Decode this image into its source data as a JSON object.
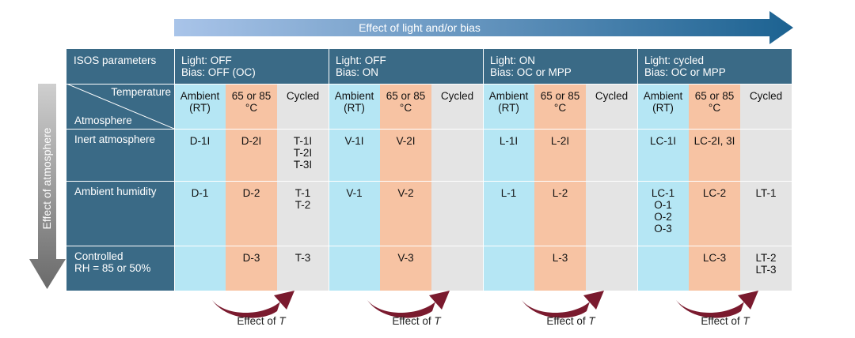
{
  "top_arrow": {
    "label": "Effect of light and/or bias",
    "color_start": "#a9c4e9",
    "color_end": "#1c6291"
  },
  "left_arrow": {
    "label": "Effect of atmosphere",
    "color_start": "#cfcfcf",
    "color_end": "#6a6a6a"
  },
  "colors": {
    "header": "#3a6a86",
    "ambient": "#b5e6f4",
    "heated": "#f7c3a3",
    "cycled": "#e4e4e4",
    "curve": "#7a1a2e"
  },
  "table": {
    "corner_label": "ISOS parameters",
    "diag_top": "Temperature",
    "diag_bottom": "Atmosphere",
    "groups": [
      {
        "light": "Light: OFF",
        "bias": "Bias: OFF (OC)"
      },
      {
        "light": "Light: OFF",
        "bias": "Bias: ON"
      },
      {
        "light": "Light: ON",
        "bias": "Bias: OC or MPP"
      },
      {
        "light": "Light: cycled",
        "bias": "Bias: OC or MPP"
      }
    ],
    "subheaders": [
      {
        "line1": "Ambient",
        "line2": "(RT)"
      },
      {
        "line1": "65 or 85",
        "line2": "°C"
      },
      {
        "line1": "Cycled",
        "line2": ""
      }
    ],
    "rows": [
      {
        "label_line1": "Inert atmosphere",
        "label_line2": "",
        "cells": [
          [
            "D-1I"
          ],
          [
            "D-2I"
          ],
          [
            "T-1I",
            "T-2I",
            "T-3I"
          ],
          [
            "V-1I"
          ],
          [
            "V-2I"
          ],
          [],
          [
            "L-1I"
          ],
          [
            "L-2I"
          ],
          [],
          [
            "LC-1I"
          ],
          [
            "LC-2I, 3I"
          ],
          []
        ]
      },
      {
        "label_line1": "Ambient humidity",
        "label_line2": "",
        "cells": [
          [
            "D-1"
          ],
          [
            "D-2"
          ],
          [
            "T-1",
            "T-2"
          ],
          [
            "V-1"
          ],
          [
            "V-2"
          ],
          [],
          [
            "L-1"
          ],
          [
            "L-2"
          ],
          [],
          [
            "LC-1",
            "O-1",
            "O-2",
            "O-3"
          ],
          [
            "LC-2"
          ],
          [
            "LT-1"
          ]
        ]
      },
      {
        "label_line1": "Controlled",
        "label_line2": "RH = 85 or 50%",
        "cells": [
          [],
          [
            "D-3"
          ],
          [
            "T-3"
          ],
          [],
          [
            "V-3"
          ],
          [],
          [],
          [
            "L-3"
          ],
          [],
          [],
          [
            "LC-3"
          ],
          [
            "LT-2",
            "LT-3"
          ]
        ]
      }
    ]
  },
  "effect_t": {
    "prefix": "Effect of ",
    "symbol": "T"
  }
}
